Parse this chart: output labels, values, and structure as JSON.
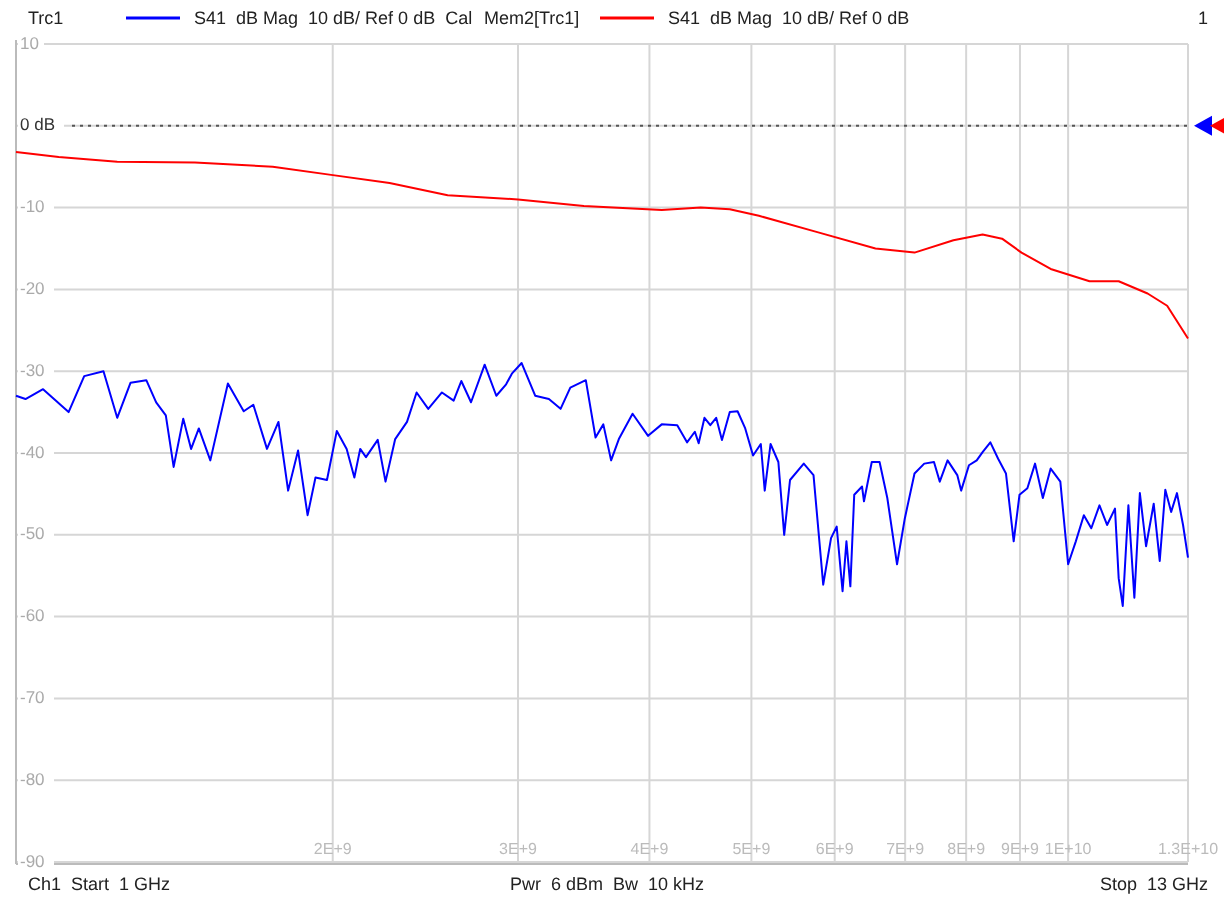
{
  "chart_data": {
    "type": "line",
    "log": "x",
    "grid": true,
    "legend": "top",
    "line_style": "solid",
    "xlim": [
      1000000000,
      13000000000
    ],
    "xticks": [
      {
        "value": 1000000000,
        "label": null
      },
      {
        "value": 2000000000,
        "label": "2E+9"
      },
      {
        "value": 3000000000,
        "label": "3E+9"
      },
      {
        "value": 4000000000,
        "label": "4E+9"
      },
      {
        "value": 5000000000,
        "label": "5E+9"
      },
      {
        "value": 6000000000,
        "label": "6E+9"
      },
      {
        "value": 7000000000,
        "label": "7E+9"
      },
      {
        "value": 8000000000,
        "label": "8E+9"
      },
      {
        "value": 9000000000,
        "label": "9E+9"
      },
      {
        "value": 10000000000,
        "label": "1E+10"
      },
      {
        "value": 13000000000,
        "label": "1.3E+10"
      }
    ],
    "ylim": [
      -90,
      10
    ],
    "yticks": [
      10,
      {
        "value": 0,
        "label": "0 dB"
      },
      -10,
      -20,
      -30,
      -40,
      -50,
      -60,
      -70,
      -80,
      -90
    ],
    "ref_lines": [
      {
        "axis": "y",
        "value": 0,
        "color": "#555555",
        "line_style": "dotted"
      }
    ],
    "annotations": [
      "Trc1",
      "Mem2[Trc1]",
      "1",
      "Ch1  Start  1 GHz",
      "Pwr  6 dBm  Bw  10 kHz",
      "Stop  13 GHz"
    ],
    "series": [
      {
        "name": "S41  dB Mag  10 dB/ Ref 0 dB  Cal",
        "color": "#0000ff",
        "x": [
          1000000000.0,
          1021000000.0,
          1061000000.0,
          1122000000.0,
          1161000000.0,
          1211000000.0,
          1248000000.0,
          1285000000.0,
          1330000000.0,
          1359000000.0,
          1388000000.0,
          1412000000.0,
          1442000000.0,
          1467000000.0,
          1492000000.0,
          1530000000.0,
          1590000000.0,
          1646000000.0,
          1681000000.0,
          1732000000.0,
          1776000000.0,
          1814000000.0,
          1854000000.0,
          1893000000.0,
          1926000000.0,
          1975000000.0,
          2018000000.0,
          2062000000.0,
          2097000000.0,
          2124000000.0,
          2151000000.0,
          2207000000.0,
          2245000000.0,
          2293000000.0,
          2353000000.0,
          2403000000.0,
          2465000000.0,
          2540000000.0,
          2606000000.0,
          2650000000.0,
          2707000000.0,
          2789000000.0,
          2861000000.0,
          2923000000.0,
          2960000000.0,
          3024000000.0,
          3115000000.0,
          3210000000.0,
          3293000000.0,
          3364000000.0,
          3480000000.0,
          3555000000.0,
          3616000000.0,
          3678000000.0,
          3741000000.0,
          3855000000.0,
          3988000000.0,
          4109000000.0,
          4251000000.0,
          4343000000.0,
          4418000000.0,
          4455000000.0,
          4512000000.0,
          4570000000.0,
          4629000000.0,
          4688000000.0,
          4769000000.0,
          4851000000.0,
          4933000000.0,
          5018000000.0,
          5104000000.0,
          5148000000.0,
          5214000000.0,
          5304000000.0,
          5372000000.0,
          5441000000.0,
          5607000000.0,
          5728000000.0,
          5851000000.0,
          5952000000.0,
          6026000000.0,
          6104000000.0,
          6156000000.0,
          6209000000.0,
          6262000000.0,
          6370000000.0,
          6397000000.0,
          6507000000.0,
          6619000000.0,
          6732000000.0,
          6877000000.0,
          6995000000.0,
          7145000000.0,
          7299000000.0,
          7456000000.0,
          7551000000.0,
          7681000000.0,
          7846000000.0,
          7913000000.0,
          8049000000.0,
          8187000000.0,
          8293000000.0,
          8435000000.0,
          8580000000.0,
          8728000000.0,
          8877000000.0,
          8991000000.0,
          9147000000.0,
          9302000000.0,
          9462000000.0,
          9625000000.0,
          9831000000.0,
          10000000000.0,
          10170000000.0,
          10350000000.0,
          10520000000.0,
          10710000000.0,
          10890000000.0,
          11080000000.0,
          11170000000.0,
          11270000000.0,
          11410000000.0,
          11560000000.0,
          11700000000.0,
          11860000000.0,
          12060000000.0,
          12220000000.0,
          12370000000.0,
          12530000000.0,
          12690000000.0,
          12860000000.0,
          13000000000.0
        ],
        "values": [
          -33,
          -33.4,
          -32.2,
          -35,
          -30.6,
          -30,
          -35.7,
          -31.4,
          -31.1,
          -33.8,
          -35.4,
          -41.7,
          -35.8,
          -39.5,
          -37,
          -40.9,
          -31.5,
          -34.9,
          -34.1,
          -39.5,
          -36.2,
          -44.6,
          -39.7,
          -47.6,
          -43,
          -43.3,
          -37.3,
          -39.5,
          -43,
          -39.5,
          -40.5,
          -38.4,
          -43.5,
          -38.3,
          -36.2,
          -32.6,
          -34.6,
          -32.6,
          -33.6,
          -31.2,
          -33.8,
          -29.2,
          -33,
          -31.6,
          -30.3,
          -29,
          -33,
          -33.4,
          -34.6,
          -32,
          -31.1,
          -38.1,
          -36.5,
          -40.9,
          -38.3,
          -35.2,
          -37.9,
          -36.5,
          -36.6,
          -38.7,
          -37.4,
          -38.8,
          -35.7,
          -36.6,
          -35.7,
          -38.4,
          -35,
          -34.9,
          -37,
          -40.3,
          -38.9,
          -44.6,
          -38.9,
          -41.1,
          -50,
          -43.3,
          -41.3,
          -42.7,
          -56.1,
          -50.4,
          -49,
          -56.9,
          -50.8,
          -56.3,
          -45.1,
          -44.1,
          -45.9,
          -41.1,
          -41.1,
          -45.5,
          -53.6,
          -48,
          -42.5,
          -41.3,
          -41.1,
          -43.5,
          -40.9,
          -42.7,
          -44.6,
          -41.5,
          -40.9,
          -39.9,
          -38.7,
          -40.7,
          -42.5,
          -50.8,
          -45.1,
          -44.3,
          -41.3,
          -45.5,
          -41.9,
          -43.5,
          -53.6,
          -50.8,
          -47.6,
          -49.2,
          -46.4,
          -48.8,
          -46.8,
          -55.3,
          -58.7,
          -46.4,
          -57.7,
          -44.9,
          -51.4,
          -46.2,
          -53.2,
          -44.5,
          -47.2,
          -44.9,
          -48.8,
          -52.8
        ]
      },
      {
        "name": "S41  dB Mag  10 dB/ Ref 0 dB",
        "color": "#ff0000",
        "x": [
          1000000000.0,
          1098000000.0,
          1248000000.0,
          1479000000.0,
          1754000000.0,
          1993000000.0,
          2265000000.0,
          2572000000.0,
          3000000000.0,
          3465000000.0,
          4109000000.0,
          4475000000.0,
          4769000000.0,
          5083000000.0,
          5776000000.0,
          6560000000.0,
          7145000000.0,
          7780000000.0,
          8293000000.0,
          8654000000.0,
          9030000000.0,
          9625000000.0,
          10480000000.0,
          11170000000.0,
          11900000000.0,
          12420000000.0,
          13000000000.0
        ],
        "values": [
          -3.2,
          -3.8,
          -4.4,
          -4.5,
          -5,
          -6,
          -7,
          -8.5,
          -9,
          -9.8,
          -10.3,
          -10,
          -10.2,
          -11,
          -13,
          -15,
          -15.5,
          -14,
          -13.3,
          -13.8,
          -15.5,
          -17.5,
          -19,
          -19,
          -20.5,
          -22,
          -26
        ]
      }
    ]
  }
}
